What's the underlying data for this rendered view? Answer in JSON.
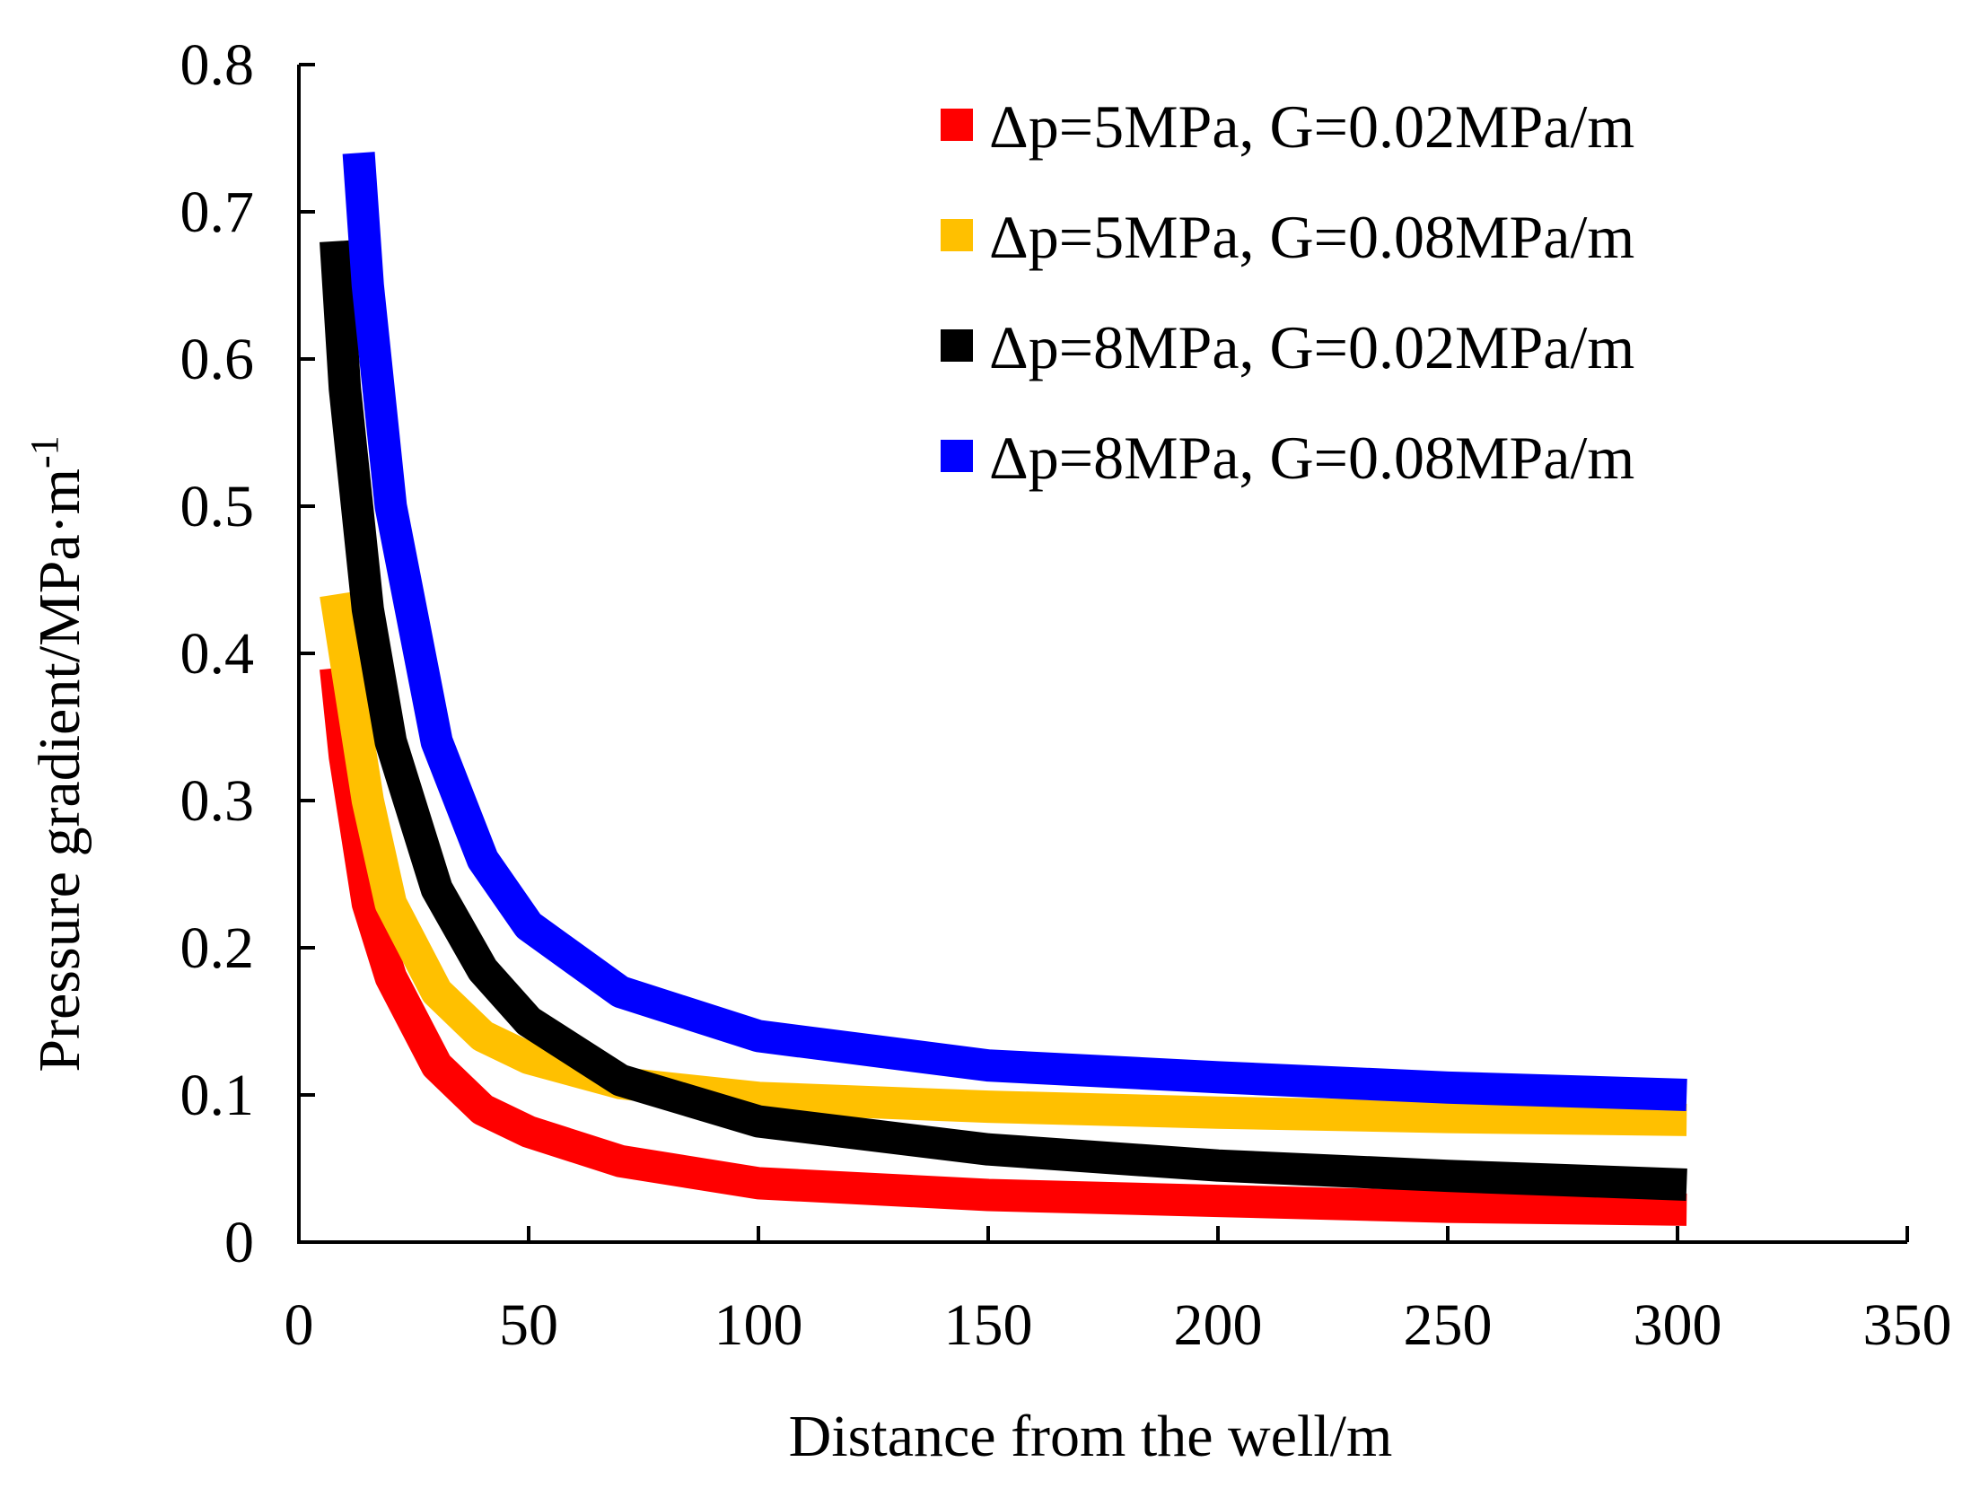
{
  "chart_data": {
    "type": "line",
    "title": "",
    "xlabel": "Distance from the well/m",
    "ylabel_main": "Pressure gradient/MPa·m",
    "ylabel_sup": "-1",
    "xlim": [
      0,
      350
    ],
    "ylim": [
      0,
      0.8
    ],
    "x_ticks": [
      0,
      50,
      100,
      150,
      200,
      250,
      300,
      350
    ],
    "x_tick_labels": [
      "0",
      "50",
      "100",
      "150",
      "200",
      "250",
      "300",
      "350"
    ],
    "y_ticks": [
      0,
      0.1,
      0.2,
      0.3,
      0.4,
      0.5,
      0.6,
      0.7,
      0.8
    ],
    "y_tick_labels": [
      "0",
      "0.1",
      "0.2",
      "0.3",
      "0.4",
      "0.5",
      "0.6",
      "0.7",
      "0.8"
    ],
    "grid": false,
    "legend_position": "top-right",
    "series": [
      {
        "name": "Δp=5MPa, G=0.02MPa/m",
        "color": "#ff0000",
        "x": [
          8,
          10,
          15,
          20,
          30,
          40,
          50,
          70,
          100,
          150,
          200,
          250,
          302
        ],
        "y": [
          0.39,
          0.33,
          0.23,
          0.18,
          0.12,
          0.09,
          0.075,
          0.055,
          0.04,
          0.032,
          0.028,
          0.024,
          0.022
        ]
      },
      {
        "name": "Δp=5MPa, G=0.08MPa/m",
        "color": "#ffc000",
        "x": [
          8,
          10,
          15,
          20,
          30,
          40,
          50,
          70,
          100,
          150,
          200,
          250,
          302
        ],
        "y": [
          0.44,
          0.4,
          0.3,
          0.23,
          0.17,
          0.14,
          0.125,
          0.108,
          0.098,
          0.092,
          0.088,
          0.085,
          0.083
        ]
      },
      {
        "name": "Δp=8MPa, G=0.02MPa/m",
        "color": "#000000",
        "x": [
          8,
          10,
          15,
          20,
          30,
          40,
          50,
          70,
          100,
          150,
          200,
          250,
          302
        ],
        "y": [
          0.68,
          0.58,
          0.43,
          0.34,
          0.24,
          0.185,
          0.15,
          0.11,
          0.082,
          0.063,
          0.052,
          0.045,
          0.039
        ]
      },
      {
        "name": "Δp=8MPa, G=0.08MPa/m",
        "color": "#0000ff",
        "x": [
          13,
          15,
          20,
          30,
          40,
          50,
          70,
          100,
          150,
          200,
          250,
          302
        ],
        "y": [
          0.74,
          0.65,
          0.5,
          0.34,
          0.26,
          0.215,
          0.17,
          0.14,
          0.12,
          0.112,
          0.105,
          0.1
        ]
      }
    ]
  }
}
